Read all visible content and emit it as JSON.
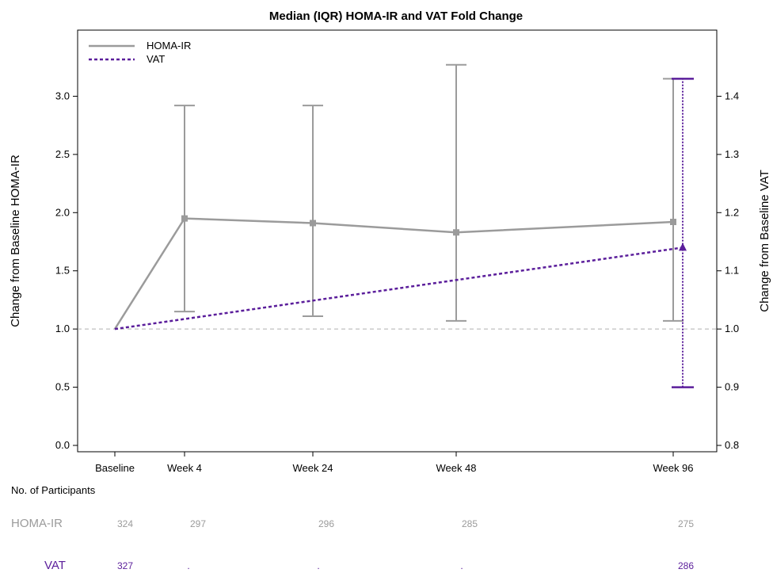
{
  "chart_data": {
    "type": "line",
    "title": "Median (IQR) HOMA-IR and VAT Fold Change",
    "categories": [
      "Baseline",
      "Week 4",
      "Week 24",
      "Week 48",
      "Week 96"
    ],
    "x_weeks": [
      0,
      4,
      24,
      48,
      96
    ],
    "y_left": {
      "label": "Change from Baseline HOMA-IR",
      "lim": [
        0.0,
        3.5
      ],
      "ticks": [
        0.0,
        0.5,
        1.0,
        1.5,
        2.0,
        2.5,
        3.0
      ],
      "tick_labels": [
        "0.0",
        "0.5",
        "1.0",
        "1.5",
        "2.0",
        "2.5",
        "3.0"
      ]
    },
    "y_right": {
      "label": "Change from Baseline VAT",
      "lim": [
        0.8,
        1.5
      ],
      "ticks": [
        0.8,
        0.9,
        1.0,
        1.1,
        1.2,
        1.3,
        1.4
      ],
      "tick_labels": [
        "0.8",
        "0.9",
        "1.0",
        "1.1",
        "1.2",
        "1.3",
        "1.4"
      ]
    },
    "reference_line": 1.0,
    "legend": {
      "position": "top-left",
      "entries": [
        "HOMA-IR",
        "VAT"
      ]
    },
    "series": [
      {
        "name": "HOMA-IR",
        "axis": "left",
        "color": "#9b9b9b",
        "style": "solid",
        "marker": "square",
        "points": [
          {
            "week": 0,
            "median": 1.0,
            "q1": null,
            "q3": null
          },
          {
            "week": 4,
            "median": 1.95,
            "q1": 1.15,
            "q3": 2.92
          },
          {
            "week": 24,
            "median": 1.91,
            "q1": 1.11,
            "q3": 2.92
          },
          {
            "week": 48,
            "median": 1.83,
            "q1": 1.07,
            "q3": 3.27
          },
          {
            "week": 96,
            "median": 1.92,
            "q1": 1.07,
            "q3": 3.15
          }
        ]
      },
      {
        "name": "VAT",
        "axis": "right",
        "color": "#5b1e9b",
        "style": "dashed",
        "marker": "triangle",
        "points": [
          {
            "week": 0,
            "median": 1.0,
            "q1": null,
            "q3": null
          },
          {
            "week": 96,
            "median": 1.14,
            "q1": 0.9,
            "q3": 1.43
          }
        ]
      }
    ],
    "risk_table": {
      "header": "No. of Participants",
      "rows": [
        {
          "label": "HOMA-IR",
          "color": "#9b9b9b",
          "counts": [
            "324",
            "297",
            "296",
            "285",
            "275"
          ]
        },
        {
          "label": "VAT",
          "color": "#5b1e9b",
          "counts": [
            "327",
            ".",
            ".",
            ".",
            "286"
          ]
        }
      ]
    }
  }
}
